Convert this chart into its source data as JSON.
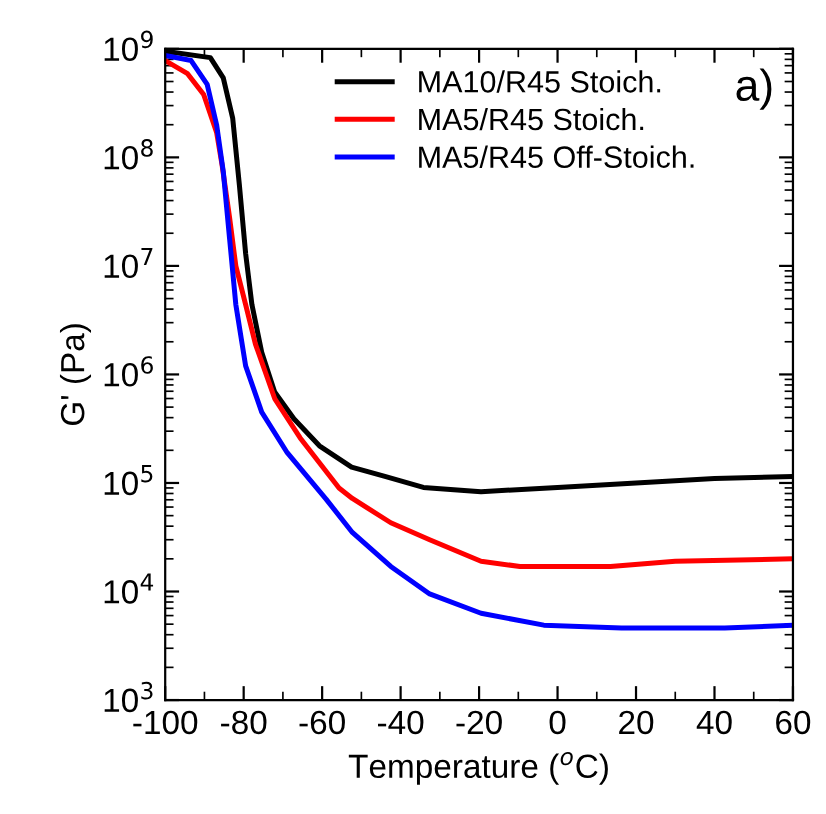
{
  "chart_data": {
    "type": "line",
    "xlabel": "Temperature ($^{o}$C)",
    "ylabel": "G' (Pa)",
    "annotations": [
      "a)"
    ],
    "log": "y",
    "xlim": [
      -100,
      60
    ],
    "xticks": [
      -100,
      -80,
      -60,
      -40,
      -20,
      0,
      20,
      40,
      60
    ],
    "ylim": [
      1000,
      1000000000
    ],
    "yticks": [
      {
        "value": 1000,
        "label": "10$^{3}$"
      },
      {
        "value": 10000,
        "label": "10$^{4}$"
      },
      {
        "value": 100000,
        "label": "10$^{5}$"
      },
      {
        "value": 1000000,
        "label": "10$^{6}$"
      },
      {
        "value": 10000000,
        "label": "10$^{7}$"
      },
      {
        "value": 100000000,
        "label": "10$^{8}$"
      },
      {
        "value": 1000000000,
        "label": "10$^{9}$"
      }
    ],
    "grid": false,
    "legend": "top right",
    "marker": "none",
    "line_style": "solid",
    "series": [
      {
        "name": "MA10/R45 Stoich.",
        "color": "#000000",
        "x": [
          -100,
          -88.5,
          -85.2,
          -82.8,
          -81.1,
          -79.5,
          -77.9,
          -75.4,
          -72.1,
          -67.2,
          -60.7,
          -52.5,
          -44,
          -34.2,
          -19.5,
          0,
          20,
          40,
          60
        ],
        "values": [
          950000000,
          830000000,
          540000000,
          230000000,
          56000000,
          13000000,
          4400000,
          1600000,
          690000,
          390000,
          220000,
          140000,
          115000,
          91000,
          83000,
          91000,
          100000,
          110000,
          115000
        ]
      },
      {
        "name": "MA5/R45 Stoich.",
        "color": "#ff0000",
        "x": [
          -100,
          -94.3,
          -90.2,
          -86.9,
          -85.5,
          -83.6,
          -82,
          -79.5,
          -77,
          -72.1,
          -65.6,
          -55.7,
          -52.3,
          -42.5,
          -32.6,
          -19.5,
          -9.6,
          13.5,
          30,
          60
        ],
        "values": [
          780000000,
          590000000,
          380000000,
          170000000,
          85000000,
          28000000,
          10000000,
          4400000,
          1900000,
          600000,
          260000,
          90000,
          72000,
          43000,
          30000,
          19000,
          17000,
          17000,
          19000,
          20000
        ]
      },
      {
        "name": "MA5/R45 Off-Stoich.",
        "color": "#0000ff",
        "x": [
          -100,
          -93.4,
          -89.3,
          -86.9,
          -85.2,
          -83.6,
          -82,
          -79.5,
          -75.4,
          -68.9,
          -59,
          -52.3,
          -42.5,
          -32.6,
          -19.5,
          -3.5,
          16.3,
          42.6,
          60
        ],
        "values": [
          870000000,
          780000000,
          470000000,
          200000000,
          74000000,
          18000000,
          4400000,
          1200000,
          450000,
          190000,
          71000,
          35000,
          17000,
          9500,
          6300,
          4900,
          4600,
          4600,
          4900
        ]
      }
    ]
  }
}
